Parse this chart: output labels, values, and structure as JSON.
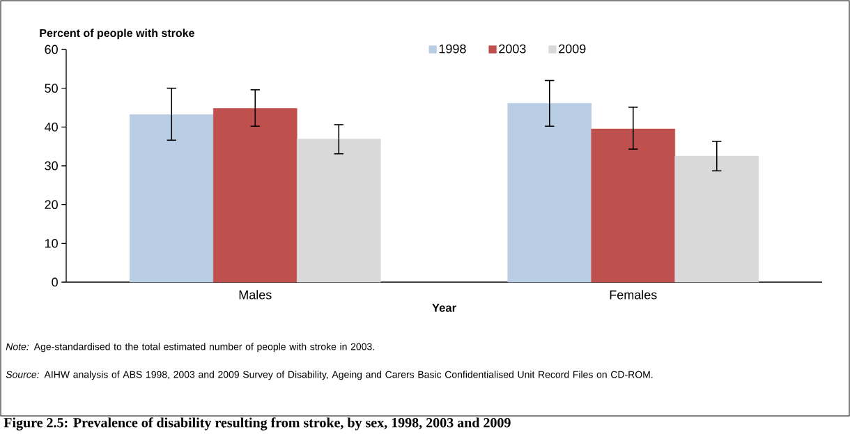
{
  "chart_data": {
    "type": "bar",
    "title": "Figure 2.5: Prevalence of disability resulting from stroke, by sex, 1998, 2003 and 2009",
    "ylabel": "Percent of people with stroke",
    "xlabel": "Year",
    "categories": [
      "Males",
      "Females"
    ],
    "series": [
      {
        "name": "1998",
        "color": "#b9cde5",
        "values": [
          43.2,
          46.1
        ],
        "errors": [
          [
            36.6,
            50.0
          ],
          [
            40.2,
            52.0
          ]
        ]
      },
      {
        "name": "2003",
        "color": "#c0504d",
        "values": [
          44.8,
          39.5
        ],
        "errors": [
          [
            40.2,
            49.6
          ],
          [
            34.3,
            45.1
          ]
        ]
      },
      {
        "name": "2009",
        "color": "#d9d9d9",
        "values": [
          36.9,
          32.5
        ],
        "errors": [
          [
            33.1,
            40.6
          ],
          [
            28.7,
            36.3
          ]
        ]
      }
    ],
    "ylim": [
      0,
      60
    ],
    "yticks": [
      0,
      10,
      20,
      30,
      40,
      50,
      60
    ],
    "legend": "top",
    "annotations": [
      "*Note:* Age-standardised to the total estimated number of people with stroke in 2003.",
      "*Source:* AIHW analysis of ABS 1998, 2003 and 2009 Survey of Disability, Ageing and Carers Basic Confidentialised Unit Record Files on CD-ROM."
    ]
  }
}
